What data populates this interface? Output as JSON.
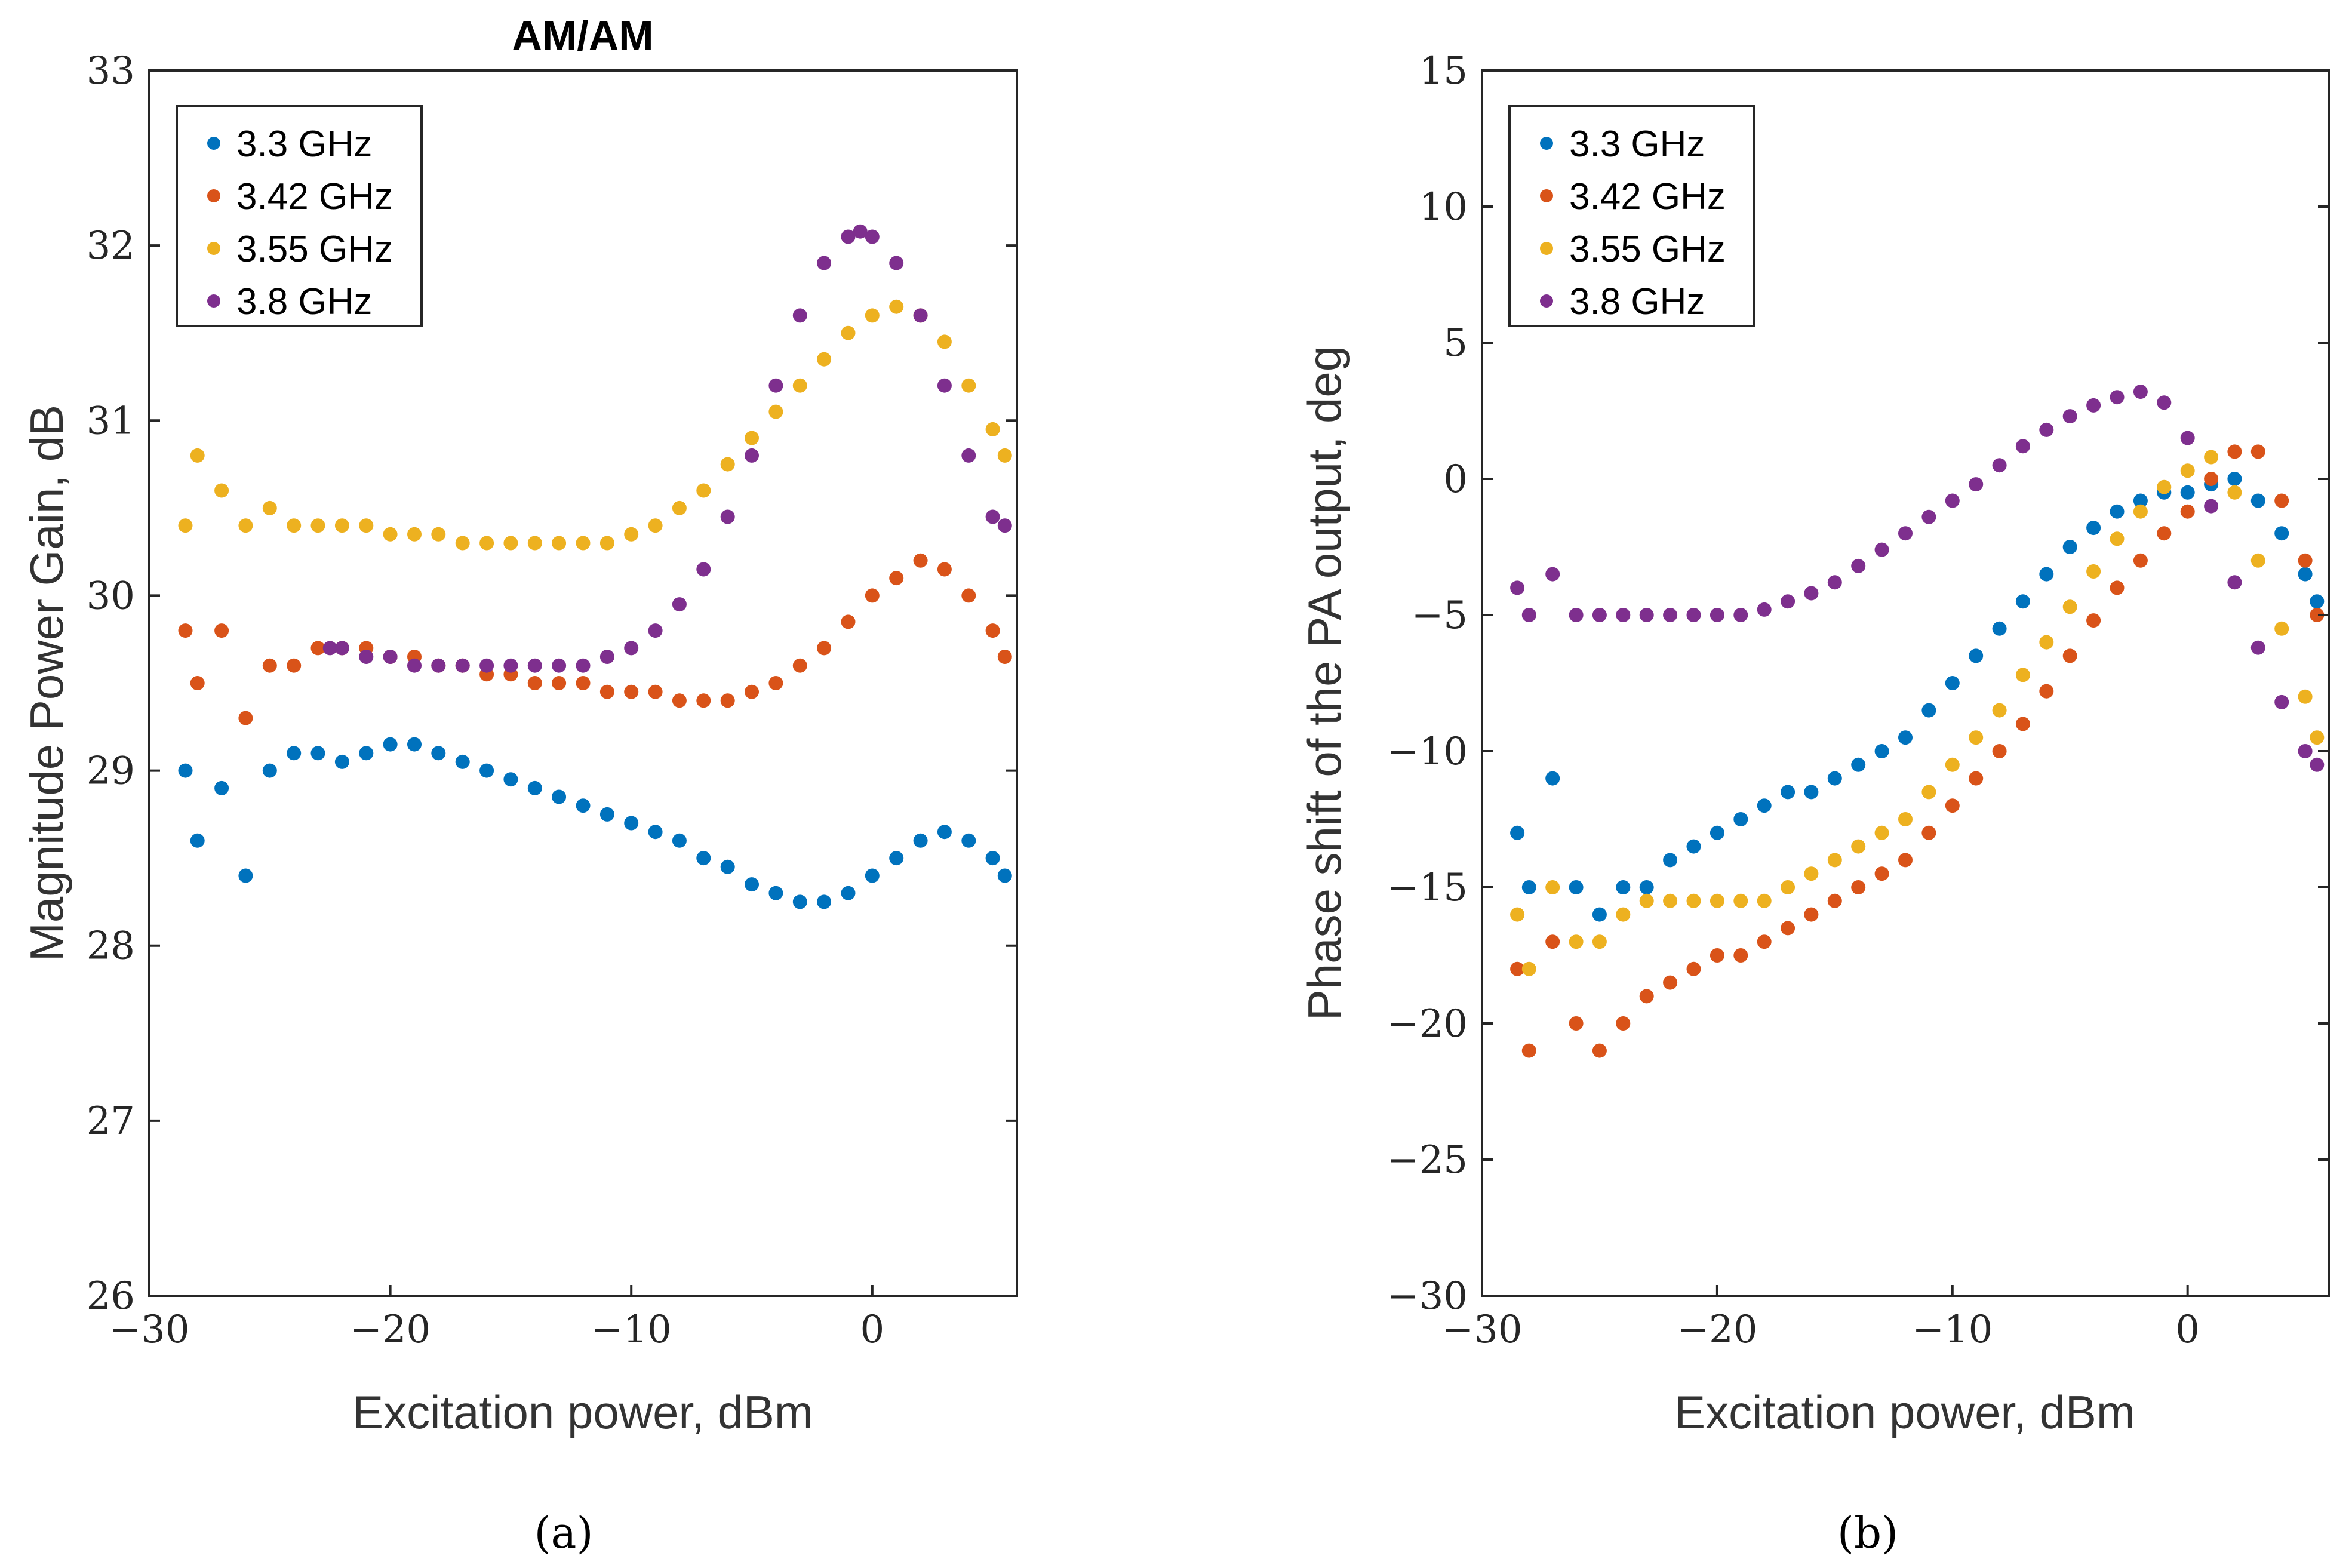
{
  "captions": {
    "a": "(a)",
    "b": "(b)"
  },
  "chart_data": [
    {
      "type": "scatter",
      "title": "AM/AM",
      "xlabel": "Excitation power, dBm",
      "ylabel": "Magnitude Power Gain, dB",
      "xlim": [
        -30,
        6
      ],
      "ylim": [
        26,
        33
      ],
      "xticks": [
        -30,
        -20,
        -10,
        0
      ],
      "yticks": [
        26,
        27,
        28,
        29,
        30,
        31,
        32,
        33
      ],
      "legend_position": "top-left",
      "grid": false,
      "series": [
        {
          "name": "3.3 GHz",
          "color": "#0072BD",
          "x": [
            -28.5,
            -28,
            -27,
            -26,
            -25,
            -24,
            -23,
            -22,
            -21,
            -20,
            -19,
            -18,
            -17,
            -16,
            -15,
            -14,
            -13,
            -12,
            -11,
            -10,
            -9,
            -8,
            -7,
            -6,
            -5,
            -4,
            -3,
            -2,
            -1,
            0,
            1,
            2,
            3,
            4,
            5,
            5.5
          ],
          "y": [
            29.0,
            28.6,
            28.9,
            28.4,
            29.0,
            29.1,
            29.1,
            29.05,
            29.1,
            29.15,
            29.15,
            29.1,
            29.05,
            29.0,
            28.95,
            28.9,
            28.85,
            28.8,
            28.75,
            28.7,
            28.65,
            28.6,
            28.5,
            28.45,
            28.35,
            28.3,
            28.25,
            28.25,
            28.3,
            28.4,
            28.5,
            28.6,
            28.65,
            28.6,
            28.5,
            28.4
          ]
        },
        {
          "name": "3.42 GHz",
          "color": "#D95319",
          "x": [
            -28.5,
            -28,
            -27,
            -26,
            -25,
            -24,
            -23,
            -22,
            -21,
            -20,
            -19,
            -18,
            -17,
            -16,
            -15,
            -14,
            -13,
            -12,
            -11,
            -10,
            -9,
            -8,
            -7,
            -6,
            -5,
            -4,
            -3,
            -2,
            -1,
            0,
            1,
            2,
            3,
            4,
            5,
            5.5
          ],
          "y": [
            29.8,
            29.5,
            29.8,
            29.3,
            29.6,
            29.6,
            29.7,
            29.7,
            29.7,
            29.65,
            29.65,
            29.6,
            29.6,
            29.55,
            29.55,
            29.5,
            29.5,
            29.5,
            29.45,
            29.45,
            29.45,
            29.4,
            29.4,
            29.4,
            29.45,
            29.5,
            29.6,
            29.7,
            29.85,
            30.0,
            30.1,
            30.2,
            30.15,
            30.0,
            29.8,
            29.65
          ]
        },
        {
          "name": "3.55 GHz",
          "color": "#EDB120",
          "x": [
            -28.5,
            -28,
            -27,
            -26,
            -25,
            -24,
            -23,
            -22,
            -21,
            -20,
            -19,
            -18,
            -17,
            -16,
            -15,
            -14,
            -13,
            -12,
            -11,
            -10,
            -9,
            -8,
            -7,
            -6,
            -5,
            -4,
            -3,
            -2,
            -1,
            0,
            1,
            2,
            3,
            4,
            5,
            5.5
          ],
          "y": [
            30.4,
            30.8,
            30.6,
            30.4,
            30.5,
            30.4,
            30.4,
            30.4,
            30.4,
            30.35,
            30.35,
            30.35,
            30.3,
            30.3,
            30.3,
            30.3,
            30.3,
            30.3,
            30.3,
            30.35,
            30.4,
            30.5,
            30.6,
            30.75,
            30.9,
            31.05,
            31.2,
            31.35,
            31.5,
            31.6,
            31.65,
            31.6,
            31.45,
            31.2,
            30.95,
            30.8
          ]
        },
        {
          "name": "3.8 GHz",
          "color": "#7E2F8E",
          "x": [
            -22.5,
            -22,
            -21,
            -20,
            -19,
            -18,
            -17,
            -16,
            -15,
            -14,
            -13,
            -12,
            -11,
            -10,
            -9,
            -8,
            -7,
            -6,
            -5,
            -4,
            -3,
            -2,
            -1,
            -0.5,
            0,
            1,
            2,
            3,
            4,
            5,
            5.5
          ],
          "y": [
            29.7,
            29.7,
            29.65,
            29.65,
            29.6,
            29.6,
            29.6,
            29.6,
            29.6,
            29.6,
            29.6,
            29.6,
            29.65,
            29.7,
            29.8,
            29.95,
            30.15,
            30.45,
            30.8,
            31.2,
            31.6,
            31.9,
            32.05,
            32.08,
            32.05,
            31.9,
            31.6,
            31.2,
            30.8,
            30.45,
            30.4
          ]
        }
      ]
    },
    {
      "type": "scatter",
      "xlabel": "Excitation power, dBm",
      "ylabel": "Phase shift of the PA output, deg",
      "xlim": [
        -30,
        6
      ],
      "ylim": [
        -30,
        15
      ],
      "xticks": [
        -30,
        -20,
        -10,
        0
      ],
      "yticks": [
        -30,
        -25,
        -20,
        -15,
        -10,
        -5,
        0,
        5,
        10,
        15
      ],
      "legend_position": "top-left",
      "grid": false,
      "series": [
        {
          "name": "3.3 GHz",
          "color": "#0072BD",
          "x": [
            -28.5,
            -28,
            -27,
            -26,
            -25,
            -24,
            -23,
            -22,
            -21,
            -20,
            -19,
            -18,
            -17,
            -16,
            -15,
            -14,
            -13,
            -12,
            -11,
            -10,
            -9,
            -8,
            -7,
            -6,
            -5,
            -4,
            -3,
            -2,
            -1,
            0,
            1,
            2,
            3,
            4,
            5,
            5.5
          ],
          "y": [
            -13,
            -15,
            -11,
            -15,
            -16,
            -15,
            -15,
            -14,
            -13.5,
            -13,
            -12.5,
            -12,
            -11.5,
            -11.5,
            -11,
            -10.5,
            -10,
            -9.5,
            -8.5,
            -7.5,
            -6.5,
            -5.5,
            -4.5,
            -3.5,
            -2.5,
            -1.8,
            -1.2,
            -0.8,
            -0.5,
            -0.5,
            -0.2,
            0.0,
            -0.8,
            -2.0,
            -3.5,
            -4.5
          ]
        },
        {
          "name": "3.42 GHz",
          "color": "#D95319",
          "x": [
            -28.5,
            -28,
            -27,
            -26,
            -25,
            -24,
            -23,
            -22,
            -21,
            -20,
            -19,
            -18,
            -17,
            -16,
            -15,
            -14,
            -13,
            -12,
            -11,
            -10,
            -9,
            -8,
            -7,
            -6,
            -5,
            -4,
            -3,
            -2,
            -1,
            0,
            1,
            2,
            3,
            4,
            5,
            5.5
          ],
          "y": [
            -18,
            -21,
            -17,
            -20,
            -21,
            -20,
            -19,
            -18.5,
            -18,
            -17.5,
            -17.5,
            -17,
            -16.5,
            -16,
            -15.5,
            -15,
            -14.5,
            -14,
            -13,
            -12,
            -11,
            -10,
            -9,
            -7.8,
            -6.5,
            -5.2,
            -4,
            -3,
            -2,
            -1.2,
            0,
            1.0,
            1.0,
            -0.8,
            -3.0,
            -5.0
          ]
        },
        {
          "name": "3.55 GHz",
          "color": "#EDB120",
          "x": [
            -28.5,
            -28,
            -27,
            -26,
            -25,
            -24,
            -23,
            -22,
            -21,
            -20,
            -19,
            -18,
            -17,
            -16,
            -15,
            -14,
            -13,
            -12,
            -11,
            -10,
            -9,
            -8,
            -7,
            -6,
            -5,
            -4,
            -3,
            -2,
            -1,
            0,
            1,
            2,
            3,
            4,
            5,
            5.5
          ],
          "y": [
            -16,
            -18,
            -15,
            -17,
            -17,
            -16,
            -15.5,
            -15.5,
            -15.5,
            -15.5,
            -15.5,
            -15.5,
            -15,
            -14.5,
            -14,
            -13.5,
            -13,
            -12.5,
            -11.5,
            -10.5,
            -9.5,
            -8.5,
            -7.2,
            -6,
            -4.7,
            -3.4,
            -2.2,
            -1.2,
            -0.3,
            0.3,
            0.8,
            -0.5,
            -3.0,
            -5.5,
            -8.0,
            -9.5
          ]
        },
        {
          "name": "3.8 GHz",
          "color": "#7E2F8E",
          "x": [
            -28.5,
            -28,
            -27,
            -26,
            -25,
            -24,
            -23,
            -22,
            -21,
            -20,
            -19,
            -18,
            -17,
            -16,
            -15,
            -14,
            -13,
            -12,
            -11,
            -10,
            -9,
            -8,
            -7,
            -6,
            -5,
            -4,
            -3,
            -2,
            -1,
            0,
            1,
            2,
            3,
            4,
            5,
            5.5
          ],
          "y": [
            -4,
            -5,
            -3.5,
            -5,
            -5,
            -5,
            -5,
            -5,
            -5,
            -5,
            -5,
            -4.8,
            -4.5,
            -4.2,
            -3.8,
            -3.2,
            -2.6,
            -2,
            -1.4,
            -0.8,
            -0.2,
            0.5,
            1.2,
            1.8,
            2.3,
            2.7,
            3.0,
            3.2,
            2.8,
            1.5,
            -1.0,
            -3.8,
            -6.2,
            -8.2,
            -10.0,
            -10.5
          ]
        }
      ]
    }
  ]
}
